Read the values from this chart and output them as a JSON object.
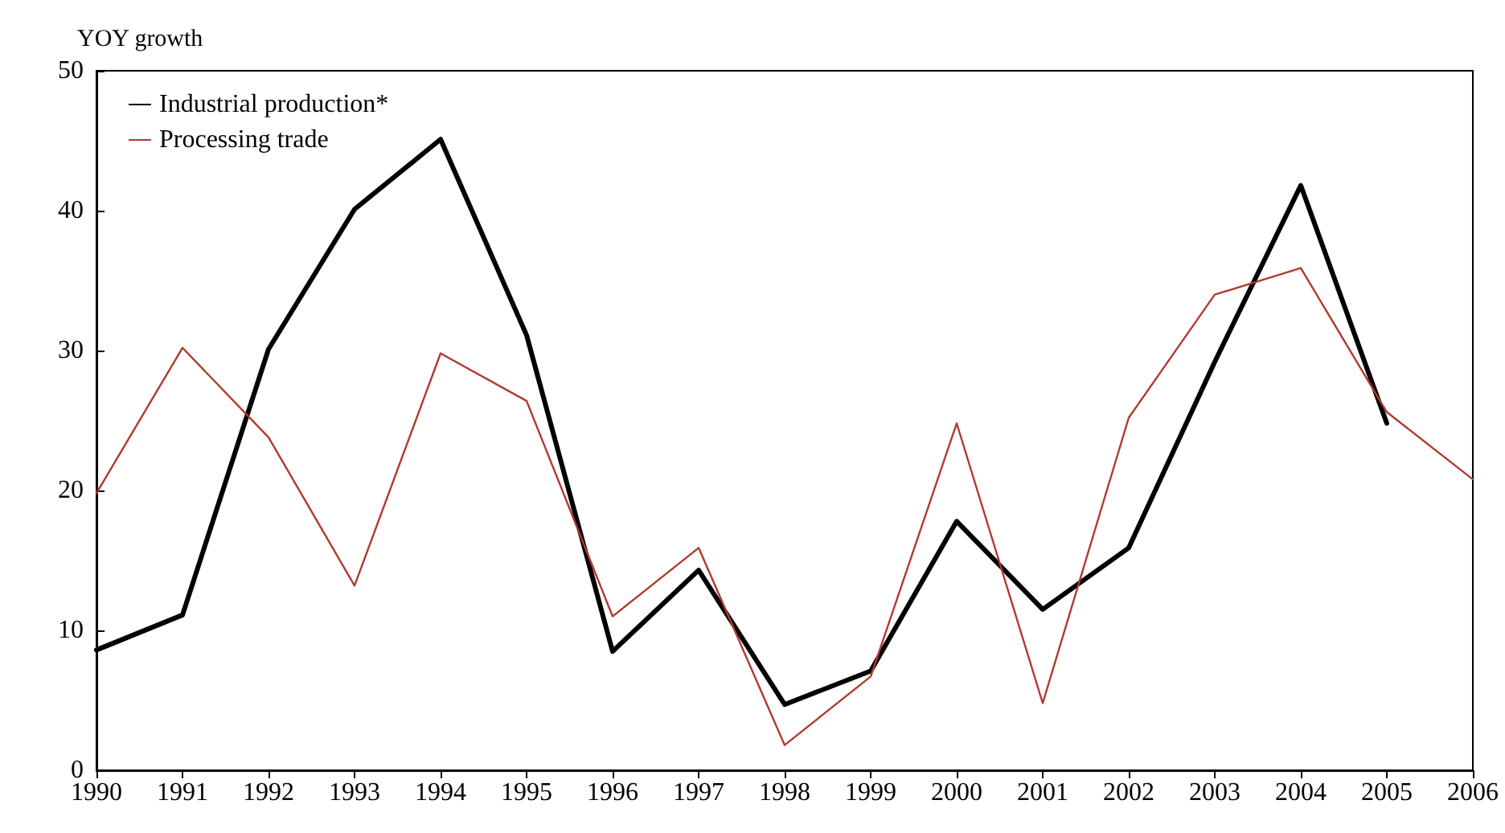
{
  "chart_data": {
    "type": "line",
    "ylabel": "YOY growth",
    "x": [
      1990,
      1991,
      1992,
      1993,
      1994,
      1995,
      1996,
      1997,
      1998,
      1999,
      2000,
      2001,
      2002,
      2003,
      2004,
      2005,
      2006
    ],
    "series": [
      {
        "name": "Industrial production*",
        "color": "#000000",
        "values": [
          8.6,
          11.1,
          30.1,
          40.1,
          45.1,
          31.1,
          8.5,
          14.3,
          4.7,
          7.1,
          17.8,
          11.5,
          15.9,
          29.2,
          41.8,
          24.8,
          null
        ]
      },
      {
        "name": "Processing trade",
        "color": "#b03a2e",
        "values": [
          19.8,
          30.2,
          23.8,
          13.2,
          29.8,
          26.4,
          11.0,
          15.9,
          1.8,
          6.7,
          24.8,
          4.8,
          25.2,
          34.0,
          35.9,
          25.6,
          20.8
        ]
      }
    ],
    "xlim": [
      1990,
      2006
    ],
    "xticks": [
      1990,
      1991,
      1992,
      1993,
      1994,
      1995,
      1996,
      1997,
      1998,
      1999,
      2000,
      2001,
      2002,
      2003,
      2004,
      2005,
      2006
    ],
    "ylim": [
      0,
      50
    ],
    "yticks": [
      0,
      10,
      20,
      30,
      40,
      50
    ],
    "grid": false,
    "legend": "top left",
    "marker": "none",
    "line_style": "solid"
  }
}
